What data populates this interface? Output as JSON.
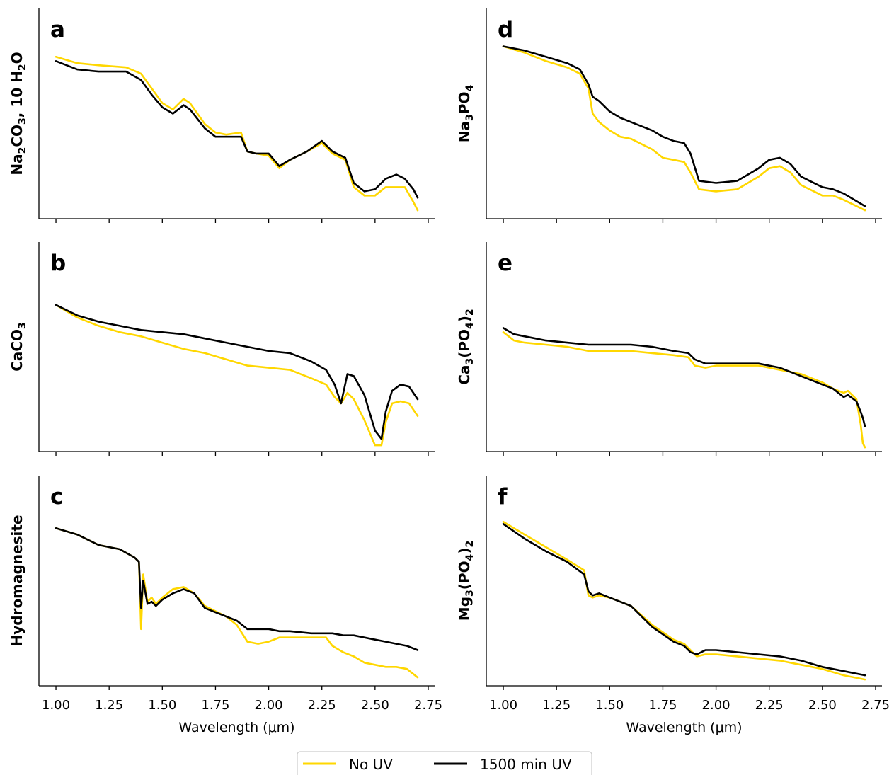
{
  "colors": {
    "no_uv": "#ffd700",
    "uv": "#000000",
    "axis": "#000000"
  },
  "legend": {
    "labels": [
      "No UV",
      "1500 min UV"
    ],
    "placement": "bottom-center"
  },
  "chart_data": [
    {
      "type": "line",
      "letter": "a",
      "ylabel": {
        "pre": "Na",
        "sub1": "2",
        "mid": "CO",
        "sub2": "3",
        "post": ", 10 H",
        "sub3": "2",
        "tail": "O"
      },
      "xlim": [
        0.92,
        2.78
      ],
      "ylim": [
        0,
        100
      ],
      "xticks_shown": false,
      "xticks": [
        "1.00",
        "1.25",
        "1.50",
        "1.75",
        "2.00",
        "2.25",
        "2.50",
        "2.75"
      ],
      "series": [
        {
          "name": "No UV",
          "color": "#ffd700",
          "x": [
            1.0,
            1.1,
            1.2,
            1.33,
            1.4,
            1.45,
            1.5,
            1.55,
            1.6,
            1.63,
            1.7,
            1.75,
            1.8,
            1.87,
            1.9,
            1.94,
            2.0,
            2.05,
            2.1,
            2.18,
            2.25,
            2.3,
            2.36,
            2.4,
            2.45,
            2.5,
            2.55,
            2.6,
            2.64,
            2.68,
            2.7
          ],
          "y": [
            77,
            74,
            73,
            72,
            69,
            62,
            55,
            52,
            57,
            55,
            45,
            41,
            40,
            41,
            32,
            31,
            30,
            24,
            28,
            32,
            36,
            31,
            28,
            15,
            11,
            11,
            15,
            15,
            15,
            8,
            4
          ]
        },
        {
          "name": "1500 min UV",
          "color": "#000000",
          "x": [
            1.0,
            1.1,
            1.2,
            1.33,
            1.4,
            1.45,
            1.5,
            1.55,
            1.6,
            1.63,
            1.7,
            1.75,
            1.8,
            1.87,
            1.9,
            1.94,
            2.0,
            2.05,
            2.1,
            2.18,
            2.25,
            2.3,
            2.36,
            2.4,
            2.45,
            2.5,
            2.55,
            2.6,
            2.64,
            2.68,
            2.7
          ],
          "y": [
            75,
            71,
            70,
            70,
            66,
            59,
            53,
            50,
            54,
            52,
            43,
            39,
            39,
            39,
            32,
            31,
            31,
            25,
            28,
            32,
            37,
            32,
            29,
            17,
            13,
            14,
            19,
            21,
            19,
            14,
            10
          ]
        }
      ]
    },
    {
      "type": "line",
      "letter": "b",
      "ylabel": {
        "pre": "CaCO",
        "sub1": "3"
      },
      "xlim": [
        0.92,
        2.78
      ],
      "ylim": [
        0,
        100
      ],
      "xticks_shown": false,
      "xticks": [
        "1.00",
        "1.25",
        "1.50",
        "1.75",
        "2.00",
        "2.25",
        "2.50",
        "2.75"
      ],
      "series": [
        {
          "name": "No UV",
          "color": "#ffd700",
          "x": [
            1.0,
            1.1,
            1.2,
            1.3,
            1.4,
            1.5,
            1.6,
            1.7,
            1.8,
            1.9,
            2.0,
            2.1,
            2.2,
            2.27,
            2.31,
            2.34,
            2.37,
            2.4,
            2.45,
            2.5,
            2.53,
            2.55,
            2.58,
            2.62,
            2.66,
            2.7
          ],
          "y": [
            70,
            64,
            60,
            57,
            55,
            52,
            49,
            47,
            44,
            41,
            40,
            39,
            35,
            32,
            26,
            23,
            28,
            25,
            15,
            3,
            3,
            14,
            23,
            24,
            23,
            17
          ]
        },
        {
          "name": "1500 min UV",
          "color": "#000000",
          "x": [
            1.0,
            1.1,
            1.2,
            1.3,
            1.4,
            1.5,
            1.6,
            1.7,
            1.8,
            1.9,
            2.0,
            2.1,
            2.2,
            2.27,
            2.31,
            2.34,
            2.37,
            2.4,
            2.45,
            2.5,
            2.53,
            2.55,
            2.58,
            2.62,
            2.66,
            2.7
          ],
          "y": [
            70,
            65,
            62,
            60,
            58,
            57,
            56,
            54,
            52,
            50,
            48,
            47,
            43,
            39,
            32,
            23,
            37,
            36,
            27,
            10,
            6,
            19,
            29,
            32,
            31,
            25
          ]
        }
      ]
    },
    {
      "type": "line",
      "letter": "c",
      "ylabel": {
        "pre": "Hydromagnesite"
      },
      "xlim": [
        0.92,
        2.78
      ],
      "ylim": [
        0,
        100
      ],
      "xticks_shown": true,
      "xlabel": "Wavelength (μm)",
      "xticks": [
        "1.00",
        "1.25",
        "1.50",
        "1.75",
        "2.00",
        "2.25",
        "2.50",
        "2.75"
      ],
      "series": [
        {
          "name": "No UV",
          "color": "#ffd700",
          "x": [
            1.0,
            1.1,
            1.2,
            1.3,
            1.37,
            1.39,
            1.4,
            1.41,
            1.43,
            1.45,
            1.47,
            1.5,
            1.55,
            1.6,
            1.65,
            1.7,
            1.8,
            1.85,
            1.9,
            1.95,
            2.0,
            2.05,
            2.1,
            2.2,
            2.27,
            2.3,
            2.35,
            2.4,
            2.45,
            2.5,
            2.55,
            2.6,
            2.65,
            2.7
          ],
          "y": [
            75,
            72,
            67,
            65,
            61,
            59,
            27,
            53,
            40,
            42,
            39,
            42,
            46,
            47,
            44,
            38,
            33,
            29,
            21,
            20,
            21,
            23,
            23,
            23,
            23,
            19,
            16,
            14,
            11,
            10,
            9,
            9,
            8,
            4
          ]
        },
        {
          "name": "1500 min UV",
          "color": "#000000",
          "x": [
            1.0,
            1.1,
            1.2,
            1.3,
            1.37,
            1.39,
            1.4,
            1.41,
            1.43,
            1.45,
            1.47,
            1.5,
            1.55,
            1.6,
            1.65,
            1.7,
            1.8,
            1.85,
            1.9,
            1.95,
            2.0,
            2.05,
            2.1,
            2.2,
            2.27,
            2.3,
            2.35,
            2.4,
            2.45,
            2.5,
            2.55,
            2.6,
            2.65,
            2.7
          ],
          "y": [
            75,
            72,
            67,
            65,
            61,
            59,
            37,
            50,
            39,
            40,
            38,
            41,
            44,
            46,
            44,
            37,
            33,
            31,
            27,
            27,
            27,
            26,
            26,
            25,
            25,
            25,
            24,
            24,
            23,
            22,
            21,
            20,
            19,
            17
          ]
        }
      ]
    },
    {
      "type": "line",
      "letter": "d",
      "ylabel": {
        "pre": "Na",
        "sub1": "3",
        "mid": "PO",
        "sub2": "4"
      },
      "xlim": [
        0.92,
        2.78
      ],
      "ylim": [
        0,
        100
      ],
      "xticks_shown": false,
      "xticks": [
        "1.00",
        "1.25",
        "1.50",
        "1.75",
        "2.00",
        "2.25",
        "2.50",
        "2.75"
      ],
      "series": [
        {
          "name": "No UV",
          "color": "#ffd700",
          "x": [
            1.0,
            1.1,
            1.2,
            1.3,
            1.36,
            1.4,
            1.42,
            1.45,
            1.5,
            1.55,
            1.6,
            1.7,
            1.75,
            1.8,
            1.85,
            1.88,
            1.92,
            2.0,
            2.1,
            2.2,
            2.25,
            2.3,
            2.35,
            2.4,
            2.5,
            2.55,
            2.6,
            2.7
          ],
          "y": [
            82,
            79,
            75,
            72,
            69,
            62,
            50,
            46,
            42,
            39,
            38,
            33,
            29,
            28,
            27,
            22,
            14,
            13,
            14,
            20,
            24,
            25,
            22,
            16,
            11,
            11,
            9,
            4
          ]
        },
        {
          "name": "1500 min UV",
          "color": "#000000",
          "x": [
            1.0,
            1.1,
            1.2,
            1.3,
            1.36,
            1.4,
            1.42,
            1.45,
            1.5,
            1.55,
            1.6,
            1.7,
            1.75,
            1.8,
            1.85,
            1.88,
            1.92,
            2.0,
            2.1,
            2.2,
            2.25,
            2.3,
            2.35,
            2.4,
            2.5,
            2.55,
            2.6,
            2.7
          ],
          "y": [
            82,
            80,
            77,
            74,
            71,
            64,
            58,
            56,
            51,
            48,
            46,
            42,
            39,
            37,
            36,
            31,
            18,
            17,
            18,
            24,
            28,
            29,
            26,
            20,
            15,
            14,
            12,
            6
          ]
        }
      ]
    },
    {
      "type": "line",
      "letter": "e",
      "ylabel": {
        "pre": "Ca",
        "sub1": "3",
        "mid": "(PO",
        "sub2": "4",
        "post": ")",
        "sub3": "2"
      },
      "xlim": [
        0.92,
        2.78
      ],
      "ylim": [
        0,
        100
      ],
      "xticks_shown": false,
      "xticks": [
        "1.00",
        "1.25",
        "1.50",
        "1.75",
        "2.00",
        "2.25",
        "2.50",
        "2.75"
      ],
      "series": [
        {
          "name": "No UV",
          "color": "#ffd700",
          "x": [
            1.0,
            1.05,
            1.1,
            1.2,
            1.3,
            1.4,
            1.5,
            1.6,
            1.7,
            1.8,
            1.87,
            1.9,
            1.95,
            2.0,
            2.1,
            2.2,
            2.3,
            2.4,
            2.5,
            2.55,
            2.6,
            2.62,
            2.66,
            2.68,
            2.69,
            2.7
          ],
          "y": [
            57,
            53,
            52,
            51,
            50,
            48,
            48,
            48,
            47,
            46,
            45,
            41,
            40,
            41,
            41,
            41,
            39,
            37,
            33,
            30,
            28,
            29,
            25,
            13,
            4,
            2
          ]
        },
        {
          "name": "1500 min UV",
          "color": "#000000",
          "x": [
            1.0,
            1.05,
            1.1,
            1.2,
            1.3,
            1.4,
            1.5,
            1.6,
            1.7,
            1.8,
            1.87,
            1.9,
            1.95,
            2.0,
            2.1,
            2.2,
            2.3,
            2.4,
            2.5,
            2.55,
            2.6,
            2.62,
            2.66,
            2.68,
            2.69,
            2.7
          ],
          "y": [
            59,
            56,
            55,
            53,
            52,
            51,
            51,
            51,
            50,
            48,
            47,
            44,
            42,
            42,
            42,
            42,
            40,
            36,
            32,
            30,
            26,
            27,
            24,
            19,
            16,
            12
          ]
        }
      ]
    },
    {
      "type": "line",
      "letter": "f",
      "ylabel": {
        "pre": "Mg",
        "sub1": "3",
        "mid": "(PO",
        "sub2": "4",
        "post": ")",
        "sub3": "2"
      },
      "xlim": [
        0.92,
        2.78
      ],
      "ylim": [
        0,
        100
      ],
      "xticks_shown": true,
      "xlabel": "Wavelength (μm)",
      "xticks": [
        "1.00",
        "1.25",
        "1.50",
        "1.75",
        "2.00",
        "2.25",
        "2.50",
        "2.75"
      ],
      "series": [
        {
          "name": "No UV",
          "color": "#ffd700",
          "x": [
            1.0,
            1.1,
            1.2,
            1.3,
            1.38,
            1.4,
            1.42,
            1.45,
            1.5,
            1.6,
            1.7,
            1.8,
            1.85,
            1.88,
            1.91,
            1.95,
            2.0,
            2.1,
            2.2,
            2.3,
            2.4,
            2.5,
            2.6,
            2.7
          ],
          "y": [
            78,
            72,
            66,
            60,
            55,
            43,
            42,
            43,
            42,
            38,
            29,
            22,
            20,
            17,
            14,
            15,
            15,
            14,
            13,
            12,
            10,
            8,
            5,
            3
          ]
        },
        {
          "name": "1500 min UV",
          "color": "#000000",
          "x": [
            1.0,
            1.1,
            1.2,
            1.3,
            1.38,
            1.4,
            1.42,
            1.45,
            1.5,
            1.6,
            1.7,
            1.8,
            1.85,
            1.88,
            1.91,
            1.95,
            2.0,
            2.1,
            2.2,
            2.3,
            2.4,
            2.5,
            2.6,
            2.7
          ],
          "y": [
            77,
            70,
            64,
            59,
            53,
            45,
            43,
            44,
            42,
            38,
            28,
            21,
            19,
            16,
            15,
            17,
            17,
            16,
            15,
            14,
            12,
            9,
            7,
            5
          ]
        }
      ]
    }
  ]
}
